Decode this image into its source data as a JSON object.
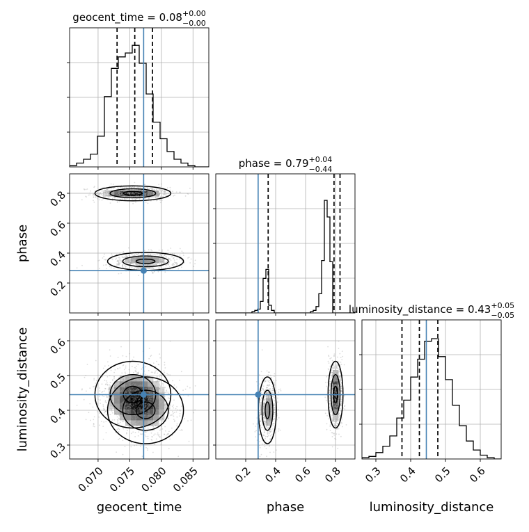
{
  "chart_data": {
    "type": "corner",
    "colors": {
      "truth": "#4682b4",
      "hist": "#000000",
      "grid": "#b0b0b0",
      "samples": "#9a9a9a"
    },
    "parameters": [
      {
        "name": "geocent_time",
        "range": [
          0.0655,
          0.0875
        ],
        "ticks": [
          "0.070",
          "0.075",
          "0.080",
          "0.085"
        ],
        "tick_values": [
          0.07,
          0.075,
          0.08,
          0.085
        ],
        "truth": 0.0772,
        "quantiles": [
          0.073,
          0.0758,
          0.0786
        ],
        "title_main": "geocent_time = 0.08",
        "title_sup": "+0.00",
        "title_sub": "−0.00",
        "hist_counts": [
          0.01,
          0.03,
          0.06,
          0.1,
          0.24,
          0.55,
          0.77,
          0.86,
          0.89,
          0.95,
          0.81,
          0.57,
          0.35,
          0.22,
          0.12,
          0.06,
          0.03,
          0.01,
          0.0,
          0.0
        ]
      },
      {
        "name": "phase",
        "range": [
          0.0,
          0.93
        ],
        "ticks": [
          "0.2",
          "0.4",
          "0.6",
          "0.8"
        ],
        "tick_values": [
          0.2,
          0.4,
          0.6,
          0.8
        ],
        "truth": 0.283,
        "quantiles": [
          0.35,
          0.79,
          0.83
        ],
        "title_main": "phase = 0.79",
        "title_sup": "+0.04",
        "title_sub": "−0.44",
        "hist_counts": [
          0.0,
          0.0,
          0.0,
          0.0,
          0.0,
          0.0,
          0.0,
          0.0,
          0.0,
          0.0,
          0.0,
          0.0,
          0.0,
          0.01,
          0.02,
          0.03,
          0.09,
          0.27,
          0.34,
          0.06,
          0.02,
          0.0,
          0.0,
          0.0,
          0.0,
          0.0,
          0.0,
          0.0,
          0.0,
          0.0,
          0.0,
          0.0,
          0.0,
          0.0,
          0.01,
          0.02,
          0.05,
          0.15,
          0.41,
          0.88,
          0.75,
          0.4,
          0.0,
          0.0,
          0.0,
          0.0,
          0.0,
          0.0,
          0.0,
          0.0
        ]
      },
      {
        "name": "luminosity_distance",
        "range": [
          0.26,
          0.66
        ],
        "ticks": [
          "0.3",
          "0.4",
          "0.5",
          "0.6"
        ],
        "tick_values": [
          0.3,
          0.4,
          0.5,
          0.6
        ],
        "truth": 0.445,
        "quantiles": [
          0.375,
          0.425,
          0.478
        ],
        "title_main": "luminosity_distance = 0.43",
        "title_sup": "+0.05",
        "title_sub": "−0.05",
        "hist_counts": [
          0.01,
          0.02,
          0.05,
          0.1,
          0.18,
          0.32,
          0.46,
          0.64,
          0.78,
          0.92,
          0.94,
          0.8,
          0.62,
          0.42,
          0.26,
          0.14,
          0.07,
          0.03,
          0.01,
          0.0
        ]
      }
    ],
    "modes": [
      {
        "x": 0.0755,
        "phase": 0.8,
        "d": 0.445,
        "sx": 0.003,
        "sp": 0.025,
        "sd": 0.048,
        "w": 0.58
      },
      {
        "x": 0.0775,
        "phase": 0.345,
        "d": 0.4,
        "sx": 0.003,
        "sp": 0.03,
        "sd": 0.048,
        "w": 0.42
      }
    ]
  }
}
